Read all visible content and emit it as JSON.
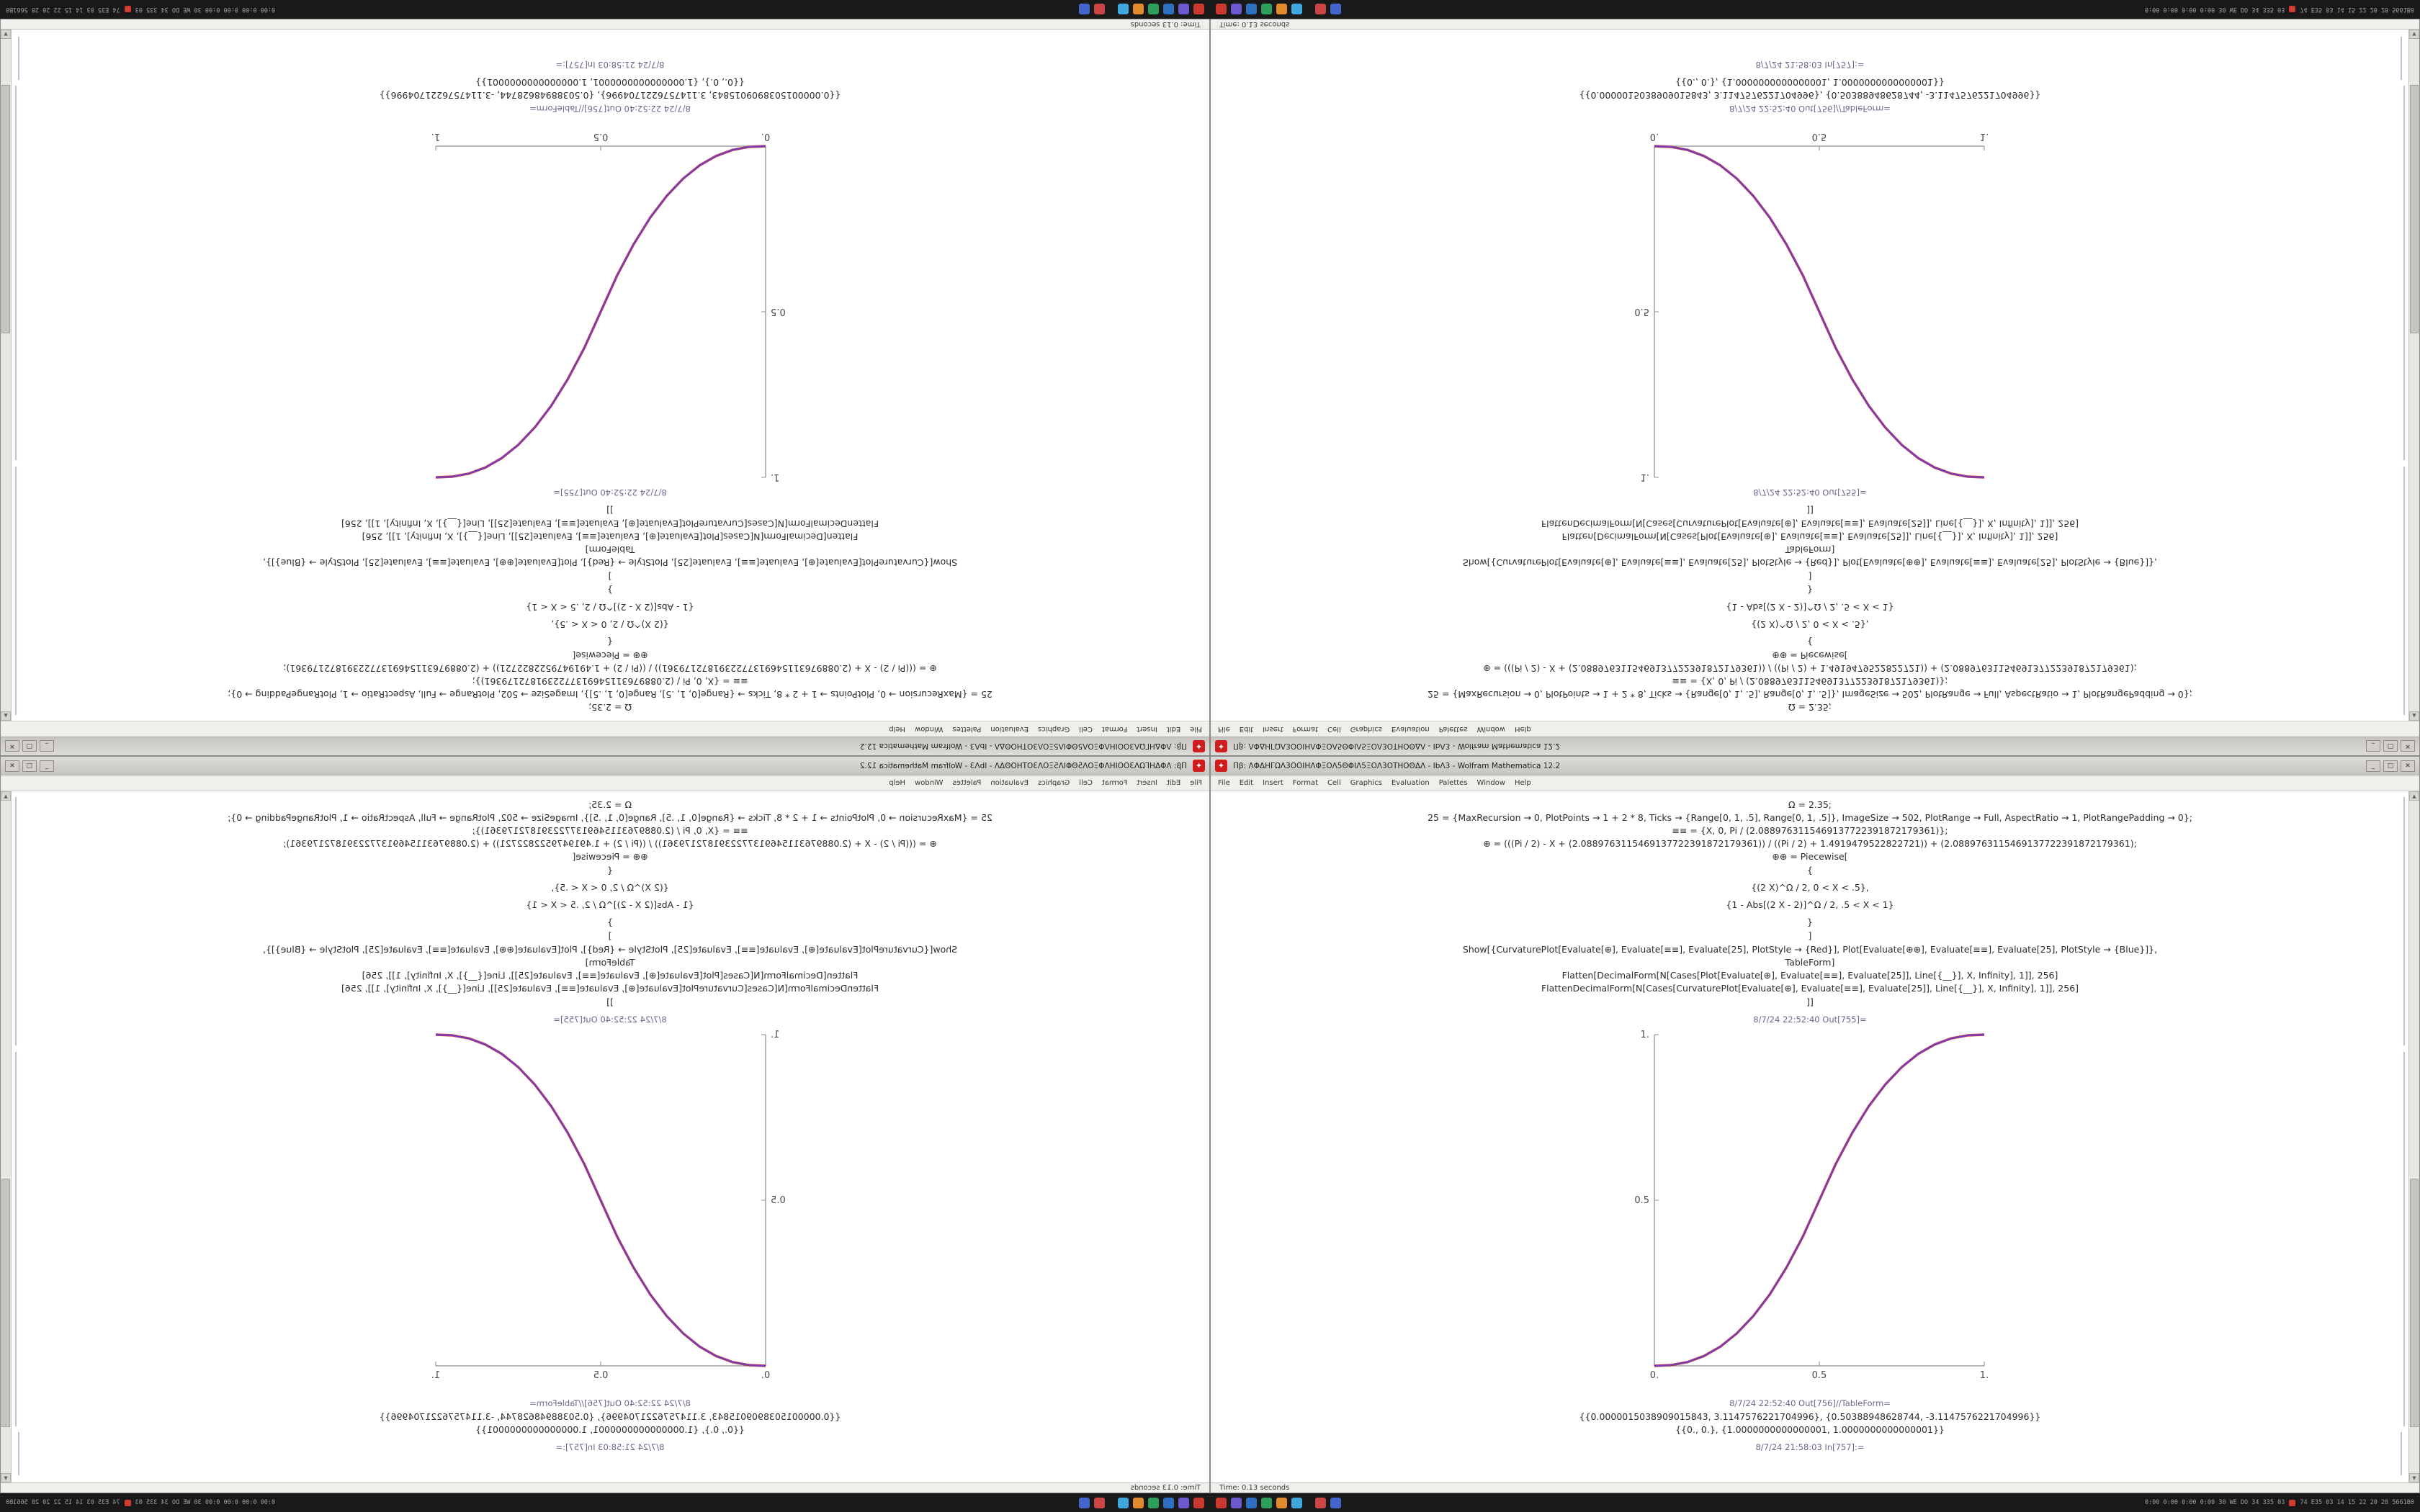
{
  "app": {
    "name": "Wolfram Mathematica",
    "version": "12.2"
  },
  "desktop": {
    "window": {
      "title": "Πβ: ΛΦΔΗΓΩΛ3ΟΟΙΗΛΦΞΟΛ5ΘΦΙΛ5ΞΟΛ3ΟΤΗΟΘΔΛ - ΙbΛ3 - Wolfram Mathematica 12.2",
      "app_icon_glyph": "✦",
      "controls": {
        "minimize": "_",
        "maximize": "□",
        "close": "✕"
      },
      "menu": {
        "items": [
          "File",
          "Edit",
          "Insert",
          "Format",
          "Cell",
          "Graphics",
          "Evaluation",
          "Palettes",
          "Window",
          "Help"
        ]
      },
      "scrollbar": {
        "up_glyph": "▲",
        "down_glyph": "▼"
      },
      "statusbar": {
        "left": "Time: 0.13 seconds"
      },
      "notebook": {
        "cells_top": [
          {
            "type": "code",
            "text": "Ω = 2.35;"
          },
          {
            "type": "code",
            "text": "25 = {MaxRecursion → 0, PlotPoints → 1 + 2 * 8, Ticks → {Range[0, 1, .5], Range[0, 1, .5]}, ImageSize → 502, PlotRange → Full, AspectRatio → 1, PlotRangePadding → 0};"
          },
          {
            "type": "code",
            "text": "≡≡ = {X, 0, Pi / (2.0889763115469137722391872179361)};"
          },
          {
            "type": "code",
            "text": "⊕ = (((Pi / 2) - X + (2.0889763115469137722391872179361)) / ((Pi / 2) + 1.4919479522822721)) + (2.0889763115469137722391872179361);"
          },
          {
            "type": "code",
            "text": "⊕⊕ = Piecewise["
          },
          {
            "type": "brace",
            "text": "{"
          },
          {
            "type": "frac",
            "text": "{(2 X)^Ω / 2,  0 < X < .5},"
          },
          {
            "type": "frac",
            "text": "{1 - Abs[(2 X - 2)]^Ω / 2,  .5 < X < 1}"
          },
          {
            "type": "brace",
            "text": "}"
          },
          {
            "type": "brace",
            "text": "]"
          },
          {
            "type": "code",
            "text": "Show[{CurvaturePlot[Evaluate[⊕], Evaluate[≡≡], Evaluate[25], PlotStyle → {Red}],  Plot[Evaluate[⊕⊕], Evaluate[≡≡], Evaluate[25], PlotStyle → {Blue}]},"
          },
          {
            "type": "code",
            "text": "TableForm]"
          },
          {
            "type": "code",
            "text": "Flatten[DecimalForm[N[Cases[Plot[Evaluate[⊕], Evaluate[≡≡], Evaluate[25]], Line[{__}], X, Infinity], 1]], 256]"
          },
          {
            "type": "code",
            "text": "FlattenDecimalForm[N[Cases[CurvaturePlot[Evaluate[⊕], Evaluate[≡≡], Evaluate[25]], Line[{__}], X, Infinity], 1]], 256]"
          },
          {
            "type": "brace",
            "text": "]]"
          },
          {
            "type": "label",
            "text": "8/7/24 22:52:40 Out[755]="
          }
        ],
        "cells_bottom": [
          {
            "type": "label",
            "text": "8/7/24 22:52:40 Out[756]//TableForm="
          },
          {
            "type": "code",
            "text": "{{0.0000015038909015843, 3.1147576221704996}, {0.50388948628744, -3.1147576221704996}}"
          },
          {
            "type": "code",
            "text": "{{0., 0.}, {1.0000000000000001, 1.0000000000000001}}"
          },
          {
            "type": "label",
            "text": "8/7/24 21:58:03 In[757]:="
          }
        ]
      }
    },
    "taskbar": {
      "icons": [
        {
          "name": "app-red",
          "color": "#c9392f"
        },
        {
          "name": "app-violet",
          "color": "#6a5acd"
        },
        {
          "name": "app-blue",
          "color": "#2f6fc1"
        },
        {
          "name": "app-green",
          "color": "#2e9e5b"
        },
        {
          "name": "app-orange",
          "color": "#e08a2e"
        },
        {
          "name": "app-lightblue",
          "color": "#3fa7dc"
        },
        {
          "name": "app-red-2",
          "color": "#cc4444"
        },
        {
          "name": "app-blue-2",
          "color": "#4466cc"
        }
      ],
      "tray_left": "0:00 0:00 0:00 0:00 30 WE DO 34 335 03",
      "tray_right": "74 E35 03 14 15 22 20 28 5661B0"
    }
  },
  "chart_data": {
    "type": "line",
    "title": "",
    "xlabel": "",
    "ylabel": "",
    "xlim": [
      0,
      1
    ],
    "ylim": [
      0,
      1
    ],
    "grid": false,
    "legend": "none",
    "xticks": [
      "0.",
      "0.5",
      "1."
    ],
    "xtick_values": [
      0,
      0.5,
      1
    ],
    "yticks": [
      "0.5",
      "1."
    ],
    "ytick_values": [
      0.5,
      1
    ],
    "x": [
      0,
      0.05,
      0.1,
      0.15,
      0.2,
      0.25,
      0.3,
      0.35,
      0.4,
      0.45,
      0.5,
      0.55,
      0.6,
      0.65,
      0.7,
      0.75,
      0.8,
      0.85,
      0.9,
      0.95,
      1
    ],
    "y": [
      0,
      0.0022,
      0.0114,
      0.0295,
      0.058,
      0.098,
      0.1505,
      0.216,
      0.296,
      0.39,
      0.5,
      0.61,
      0.704,
      0.784,
      0.8495,
      0.902,
      0.942,
      0.9705,
      0.9886,
      0.9978,
      1
    ],
    "series": [
      {
        "name": "CurvaturePlot[⊕] (Red)",
        "color": "#cf3a4e",
        "width": 3.4
      },
      {
        "name": "Plot[⊕⊕] (Blue)",
        "color": "#6a3fc0",
        "width": 1.9
      }
    ]
  }
}
